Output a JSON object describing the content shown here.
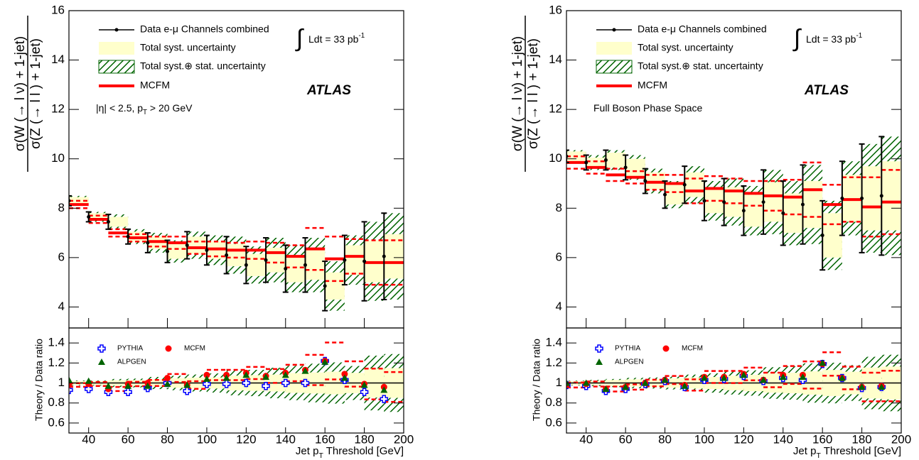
{
  "chart_data": [
    {
      "type": "errorbar",
      "y_label_num": "σ(W (→ l ν) + 1-jet)",
      "y_label_den": "σ(Z (→ l l ) + 1-jet)",
      "x_label": [
        "Jet p",
        "T",
        " Threshold [GeV]"
      ],
      "lumi": [
        "Ldt = 33 pb",
        "-1"
      ],
      "atlas": "ATLAS",
      "region": [
        "|η| < 2.5, p",
        "T",
        " > 20 GeV"
      ],
      "xlim": [
        30,
        200
      ],
      "xticks": [
        40,
        60,
        80,
        100,
        120,
        140,
        160,
        180,
        200
      ],
      "bins": [
        30,
        40,
        50,
        60,
        70,
        80,
        90,
        100,
        110,
        120,
        130,
        140,
        150,
        160,
        170,
        180,
        190,
        200
      ],
      "ylim": [
        3.15,
        16
      ],
      "yticks": [
        4,
        6,
        8,
        10,
        12,
        14,
        16
      ],
      "data": {
        "name": "Data e-μ Channels combined",
        "color": "#000000",
        "values": [
          8.3,
          7.65,
          7.45,
          6.85,
          6.6,
          6.25,
          6.5,
          6.3,
          6.1,
          5.7,
          5.9,
          5.55,
          5.7,
          4.85,
          5.9,
          5.85,
          6.05
        ],
        "errors": [
          0.2,
          0.2,
          0.3,
          0.3,
          0.4,
          0.45,
          0.55,
          0.6,
          0.75,
          0.75,
          0.9,
          0.95,
          1.1,
          1.0,
          1.0,
          1.6,
          1.75
        ],
        "syst": [
          0.15,
          0.15,
          0.2,
          0.2,
          0.25,
          0.3,
          0.35,
          0.35,
          0.45,
          0.45,
          0.5,
          0.55,
          0.6,
          0.55,
          0.6,
          0.85,
          0.9
        ]
      },
      "syst_band": {
        "name": "Total syst. uncertainty",
        "color": "#ffffcc"
      },
      "total_band": {
        "name": "Total syst.⊕ stat. uncertainty",
        "color": "#006400"
      },
      "mcfm": {
        "name": "MCFM",
        "color": "#ff0000",
        "values": [
          8.15,
          7.55,
          7.0,
          6.8,
          6.65,
          6.6,
          6.4,
          6.35,
          6.3,
          6.3,
          6.2,
          6.05,
          6.35,
          5.95,
          6.05,
          5.8,
          5.8
        ],
        "errors": [
          0.15,
          0.15,
          0.15,
          0.15,
          0.2,
          0.25,
          0.25,
          0.3,
          0.3,
          0.35,
          0.4,
          0.45,
          0.85,
          0.9,
          0.7,
          0.9,
          0.9
        ]
      },
      "ratio": {
        "y_label": "Theory / Data ratio",
        "ylim": [
          0.5,
          1.55
        ],
        "yticks": [
          0.6,
          0.8,
          1,
          1.2,
          1.4
        ],
        "series": [
          {
            "name": "PYTHIA",
            "color": "#0000ff",
            "marker": "cross",
            "values": [
              0.93,
              0.94,
              0.91,
              0.91,
              0.95,
              1.0,
              0.92,
              0.99,
              0.99,
              1.0,
              0.97,
              1.0,
              1.0,
              1.22,
              1.03,
              0.91,
              0.84
            ]
          },
          {
            "name": "MCFM",
            "color": "#ff0000",
            "marker": "circle",
            "values": [
              0.98,
              0.99,
              0.94,
              0.99,
              1.0,
              1.05,
              0.98,
              1.08,
              1.08,
              1.1,
              1.07,
              1.1,
              1.13,
              1.22,
              1.09,
              0.99,
              0.96
            ]
          },
          {
            "name": "ALPGEN",
            "color": "#006400",
            "marker": "triangle",
            "values": [
              1.03,
              1.02,
              0.97,
              0.97,
              0.97,
              0.99,
              0.98,
              1.04,
              1.05,
              1.08,
              1.06,
              1.08,
              1.12,
              1.21,
              1.05,
              0.98,
              0.93
            ]
          }
        ]
      }
    },
    {
      "type": "errorbar",
      "y_label_num": "σ(W (→ l ν) + 1-jet)",
      "y_label_den": "σ(Z (→ l l ) + 1-jet)",
      "x_label": [
        "Jet p",
        "T",
        " Threshold [GeV]"
      ],
      "lumi": [
        "Ldt = 33 pb",
        "-1"
      ],
      "atlas": "ATLAS",
      "region": [
        "Full Boson Phase Space"
      ],
      "xlim": [
        30,
        200
      ],
      "xticks": [
        40,
        60,
        80,
        100,
        120,
        140,
        160,
        180,
        200
      ],
      "bins": [
        30,
        40,
        50,
        60,
        70,
        80,
        90,
        100,
        110,
        120,
        130,
        140,
        150,
        160,
        170,
        180,
        190,
        200
      ],
      "ylim": [
        3.15,
        16
      ],
      "yticks": [
        4,
        6,
        8,
        10,
        12,
        14,
        16
      ],
      "data": {
        "name": "Data e-μ Channels combined",
        "color": "#000000",
        "values": [
          10.1,
          9.85,
          9.95,
          9.65,
          9.1,
          8.55,
          8.95,
          8.3,
          8.25,
          7.9,
          8.25,
          7.8,
          8.15,
          6.9,
          8.4,
          8.4,
          8.5
        ],
        "errors": [
          0.25,
          0.3,
          0.4,
          0.5,
          0.5,
          0.55,
          0.75,
          0.8,
          0.95,
          1.0,
          1.3,
          1.3,
          1.6,
          1.4,
          1.5,
          2.2,
          2.4
        ],
        "syst": [
          0.2,
          0.2,
          0.3,
          0.35,
          0.35,
          0.4,
          0.5,
          0.5,
          0.6,
          0.65,
          0.8,
          0.8,
          0.95,
          0.9,
          0.95,
          1.3,
          1.4
        ]
      },
      "syst_band": {
        "name": "Total syst. uncertainty",
        "color": "#ffffcc"
      },
      "total_band": {
        "name": "Total syst.⊕ stat. uncertainty",
        "color": "#006400"
      },
      "mcfm": {
        "name": "MCFM",
        "color": "#ff0000",
        "values": [
          9.85,
          9.65,
          9.35,
          9.25,
          9.05,
          9.0,
          8.7,
          8.8,
          8.7,
          8.6,
          8.5,
          8.45,
          8.75,
          8.15,
          8.35,
          8.05,
          8.25
        ],
        "errors": [
          0.25,
          0.25,
          0.25,
          0.25,
          0.3,
          0.35,
          0.5,
          0.5,
          0.5,
          0.5,
          0.6,
          0.7,
          1.1,
          0.8,
          0.9,
          1.2,
          1.3
        ]
      },
      "ratio": {
        "y_label": "Theory / Data ratio",
        "ylim": [
          0.5,
          1.55
        ],
        "yticks": [
          0.6,
          0.8,
          1,
          1.2,
          1.4
        ],
        "series": [
          {
            "name": "PYTHIA",
            "color": "#0000ff",
            "marker": "cross",
            "values": [
              0.98,
              0.97,
              0.92,
              0.94,
              0.99,
              1.02,
              0.96,
              1.03,
              1.04,
              1.07,
              1.02,
              1.05,
              1.03,
              1.19,
              1.05,
              0.95,
              0.96
            ]
          },
          {
            "name": "MCFM",
            "color": "#ff0000",
            "marker": "circle",
            "values": [
              0.98,
              0.99,
              0.94,
              0.96,
              1.0,
              1.03,
              0.98,
              1.06,
              1.06,
              1.09,
              1.03,
              1.08,
              1.08,
              1.19,
              1.05,
              0.96,
              0.97
            ]
          },
          {
            "name": "ALPGEN",
            "color": "#006400",
            "marker": "triangle",
            "values": [
              1.0,
              1.0,
              0.94,
              0.96,
              1.0,
              1.03,
              0.97,
              1.05,
              1.05,
              1.08,
              1.03,
              1.06,
              1.06,
              1.2,
              1.05,
              0.96,
              0.96
            ]
          }
        ]
      }
    }
  ]
}
